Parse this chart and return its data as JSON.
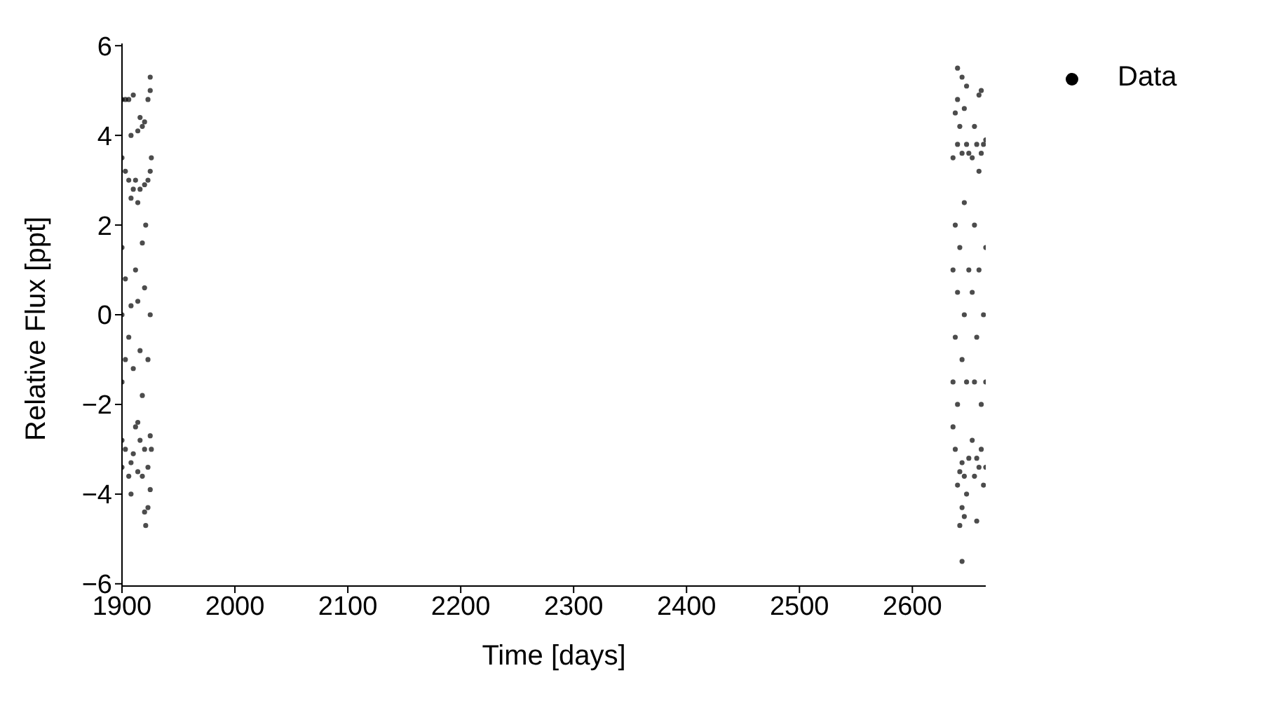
{
  "chart_data": {
    "type": "scatter",
    "xlabel": "Time [days]",
    "ylabel": "Relative Flux [ppt]",
    "xlim": [
      1900,
      2665
    ],
    "xticks": [
      1900,
      2000,
      2100,
      2200,
      2300,
      2400,
      2500,
      2600
    ],
    "ylim": [
      -6.05,
      6.05
    ],
    "yticks": [
      {
        "value": -6,
        "label": "−6"
      },
      {
        "value": -4,
        "label": "−4"
      },
      {
        "value": -2,
        "label": "−2"
      },
      0,
      2,
      4,
      6
    ],
    "grid": false,
    "legend": "right",
    "marker": "circle",
    "series": [
      {
        "name": "Data",
        "color": "#000000",
        "x": [
          1900,
          1900,
          1900,
          1900,
          1900,
          1900,
          1900,
          1903,
          1903,
          1903,
          1903,
          1903,
          1906,
          1906,
          1906,
          1906,
          1908,
          1908,
          1908,
          1908,
          1908,
          1910,
          1910,
          1910,
          1910,
          1912,
          1912,
          1912,
          1914,
          1914,
          1914,
          1914,
          1914,
          1916,
          1916,
          1916,
          1916,
          1918,
          1918,
          1918,
          1918,
          1920,
          1920,
          1920,
          1920,
          1920,
          1921,
          1921,
          1923,
          1923,
          1923,
          1923,
          1923,
          1925,
          1925,
          1925,
          1925,
          1925,
          1925,
          1926,
          1926,
          2636,
          2636,
          2636,
          2636,
          2638,
          2638,
          2638,
          2638,
          2640,
          2640,
          2640,
          2640,
          2640,
          2640,
          2642,
          2642,
          2642,
          2642,
          2644,
          2644,
          2644,
          2644,
          2644,
          2644,
          2646,
          2646,
          2646,
          2646,
          2646,
          2648,
          2648,
          2648,
          2648,
          2650,
          2650,
          2650,
          2653,
          2653,
          2653,
          2655,
          2655,
          2655,
          2655,
          2657,
          2657,
          2657,
          2657,
          2659,
          2659,
          2659,
          2659,
          2661,
          2661,
          2661,
          2661,
          2663,
          2663,
          2663,
          2665,
          2665,
          2665,
          2665
        ],
        "values": [
          4.8,
          3.5,
          1.5,
          0,
          -1.5,
          -2.8,
          -3.4,
          4.8,
          3.2,
          0.8,
          -1,
          -3.0,
          4.8,
          3.0,
          -0.5,
          -3.6,
          4.0,
          2.6,
          0.2,
          -3.3,
          -4.0,
          4.9,
          2.8,
          -1.2,
          -3.1,
          3.0,
          1.0,
          -2.5,
          4.1,
          2.5,
          0.3,
          -2.4,
          -3.5,
          4.4,
          2.8,
          -0.8,
          -2.8,
          4.2,
          1.6,
          -1.8,
          -3.6,
          4.3,
          2.9,
          0.6,
          -3.0,
          -4.4,
          -4.7,
          2.0,
          4.8,
          3.0,
          -1.0,
          -3.4,
          -4.3,
          5.3,
          5.0,
          3.2,
          0,
          -2.7,
          -3.9,
          3.5,
          -3.0,
          3.5,
          1.0,
          -1.5,
          -2.5,
          4.5,
          2.0,
          -0.5,
          -3.0,
          5.5,
          4.8,
          3.8,
          0.5,
          -2.0,
          -3.8,
          4.2,
          1.5,
          -3.5,
          -4.7,
          5.3,
          3.6,
          -1.0,
          -3.3,
          -5.5,
          -4.3,
          4.6,
          2.5,
          0,
          -3.6,
          -4.5,
          5.1,
          3.8,
          -1.5,
          -4.0,
          3.6,
          1.0,
          -3.2,
          3.5,
          0.5,
          -2.8,
          4.2,
          2.0,
          -1.5,
          -3.6,
          3.8,
          -0.5,
          -4.6,
          -3.2,
          4.9,
          3.2,
          1.0,
          -3.4,
          5.0,
          3.6,
          -2.0,
          -3.0,
          3.8,
          0.0,
          -3.8,
          3.9,
          1.5,
          -1.5,
          -3.4
        ]
      }
    ]
  }
}
